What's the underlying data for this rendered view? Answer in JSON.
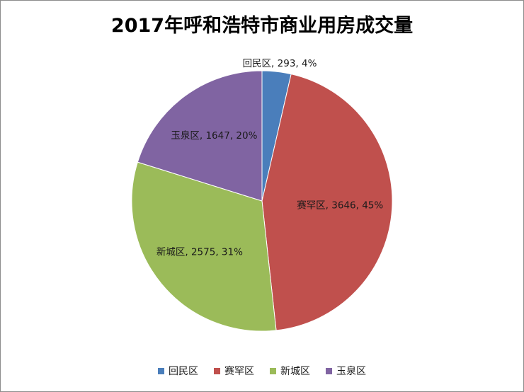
{
  "chart_data": {
    "type": "pie",
    "title": "2017年呼和浩特市商业用房成交量",
    "slices": [
      {
        "label": "回民区",
        "value": 293,
        "percent": "4%",
        "color": "#4a7ebb"
      },
      {
        "label": "赛罕区",
        "value": 3646,
        "percent": "45%",
        "color": "#c0504d"
      },
      {
        "label": "新城区",
        "value": 2575,
        "percent": "31%",
        "color": "#9bbb59"
      },
      {
        "label": "玉泉区",
        "value": 1647,
        "percent": "20%",
        "color": "#8064a2"
      }
    ],
    "legend_position": "bottom"
  }
}
